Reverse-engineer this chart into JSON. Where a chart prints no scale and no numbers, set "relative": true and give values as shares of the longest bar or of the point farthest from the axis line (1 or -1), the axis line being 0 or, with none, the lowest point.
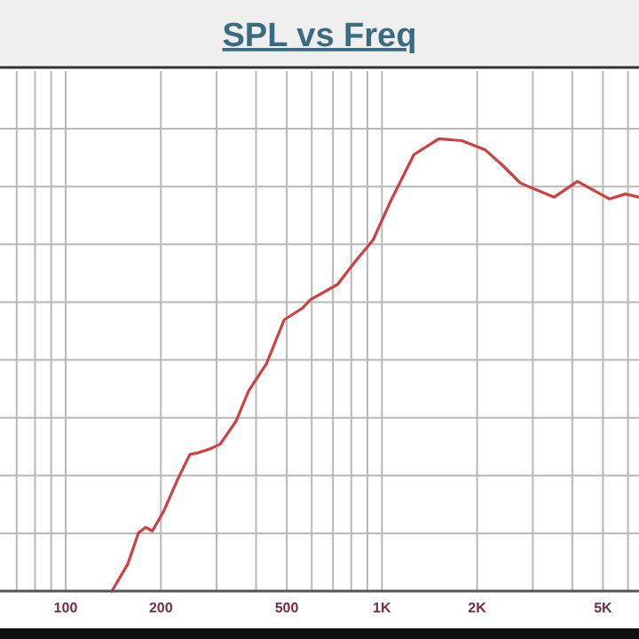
{
  "chart_data": {
    "type": "line",
    "title": "SPL vs Freq",
    "relative": true,
    "log": "x",
    "grid": true,
    "marker": "none",
    "line_style": "solid",
    "xlim": [
      62,
      6500
    ],
    "xticks": [
      100,
      200,
      500,
      {
        "value": 1000,
        "label": "1K"
      },
      {
        "value": 2000,
        "label": "2K"
      },
      {
        "value": 5000,
        "label": "5K"
      }
    ],
    "series": [
      {
        "color": "#d04040",
        "x": [
          140,
          157,
          170,
          179,
          188,
          204,
          226,
          247,
          263,
          285,
          308,
          346,
          379,
          431,
          491,
          559,
          596,
          724,
          824,
          937,
          1067,
          1262,
          1513,
          1790,
          2118,
          2411,
          2742,
          3508,
          4150,
          5236,
          5888,
          6500
        ],
        "values": [
          0,
          0.059,
          0.129,
          0.141,
          0.133,
          0.176,
          0.247,
          0.302,
          0.306,
          0.314,
          0.325,
          0.376,
          0.443,
          0.502,
          0.6,
          0.625,
          0.645,
          0.678,
          0.729,
          0.776,
          0.863,
          0.965,
          1,
          0.996,
          0.976,
          0.941,
          0.902,
          0.871,
          0.906,
          0.867,
          0.878,
          0.871
        ]
      }
    ]
  }
}
